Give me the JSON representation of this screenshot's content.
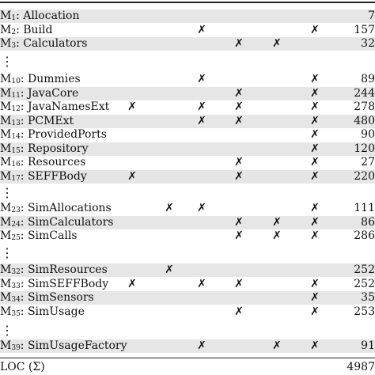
{
  "table": {
    "check_symbol": "✗",
    "rows": [
      {
        "prefix": "M",
        "sub": "1",
        "name": ": Allocation",
        "loc": "7",
        "marks": [
          false,
          false,
          false,
          false,
          false,
          false
        ]
      },
      {
        "prefix": "M",
        "sub": "2",
        "name": ": Build",
        "loc": "157",
        "marks": [
          false,
          false,
          true,
          false,
          false,
          true
        ]
      },
      {
        "prefix": "M",
        "sub": "3",
        "name": ": Calculators",
        "loc": "32",
        "marks": [
          false,
          false,
          false,
          true,
          true,
          false
        ]
      },
      {
        "prefix": "M",
        "sub": "10",
        "name": ": Dummies",
        "loc": "89",
        "marks": [
          false,
          false,
          true,
          false,
          false,
          true
        ]
      },
      {
        "prefix": "M",
        "sub": "11",
        "name": ": JavaCore",
        "loc": "244",
        "marks": [
          false,
          false,
          false,
          true,
          false,
          true
        ]
      },
      {
        "prefix": "M",
        "sub": "12",
        "name": ": JavaNamesExt",
        "loc": "278",
        "marks": [
          true,
          false,
          true,
          true,
          false,
          true
        ]
      },
      {
        "prefix": "M",
        "sub": "13",
        "name": ": PCMExt",
        "loc": "480",
        "marks": [
          false,
          false,
          true,
          true,
          false,
          true
        ]
      },
      {
        "prefix": "M",
        "sub": "14",
        "name": ": ProvidedPorts",
        "loc": "90",
        "marks": [
          false,
          false,
          false,
          false,
          false,
          true
        ]
      },
      {
        "prefix": "M",
        "sub": "15",
        "name": ": Repository",
        "loc": "120",
        "marks": [
          false,
          false,
          false,
          false,
          false,
          true
        ]
      },
      {
        "prefix": "M",
        "sub": "16",
        "name": ": Resources",
        "loc": "27",
        "marks": [
          false,
          false,
          false,
          true,
          false,
          true
        ]
      },
      {
        "prefix": "M",
        "sub": "17",
        "name": ": SEFFBody",
        "loc": "220",
        "marks": [
          true,
          false,
          false,
          true,
          false,
          true
        ]
      },
      {
        "prefix": "M",
        "sub": "23",
        "name": ": SimAllocations",
        "loc": "111",
        "marks": [
          false,
          true,
          true,
          false,
          false,
          true
        ]
      },
      {
        "prefix": "M",
        "sub": "24",
        "name": ": SimCalculators",
        "loc": "86",
        "marks": [
          false,
          false,
          false,
          true,
          true,
          true
        ]
      },
      {
        "prefix": "M",
        "sub": "25",
        "name": ": SimCalls",
        "loc": "286",
        "marks": [
          false,
          false,
          false,
          true,
          true,
          true
        ]
      },
      {
        "prefix": "M",
        "sub": "32",
        "name": ": SimResources",
        "loc": "252",
        "marks": [
          false,
          true,
          false,
          false,
          false,
          false
        ]
      },
      {
        "prefix": "M",
        "sub": "33",
        "name": ": SimSEFFBody",
        "loc": "252",
        "marks": [
          true,
          false,
          true,
          true,
          false,
          true
        ]
      },
      {
        "prefix": "M",
        "sub": "34",
        "name": ": SimSensors",
        "loc": "35",
        "marks": [
          false,
          false,
          false,
          false,
          false,
          true
        ]
      },
      {
        "prefix": "M",
        "sub": "35",
        "name": ": SimUsage",
        "loc": "253",
        "marks": [
          false,
          false,
          false,
          true,
          false,
          true
        ]
      },
      {
        "prefix": "M",
        "sub": "39",
        "name": ": SimUsageFactory",
        "loc": "91",
        "marks": [
          false,
          false,
          true,
          false,
          true,
          true
        ]
      }
    ],
    "total": {
      "label": "LOC (Σ)",
      "value": "4987"
    }
  }
}
